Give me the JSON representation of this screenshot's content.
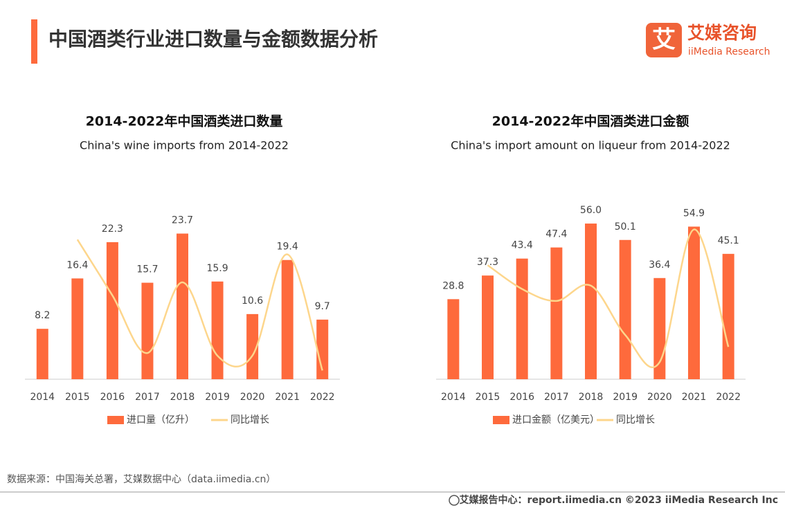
{
  "header": {
    "title": "中国酒类行业进口数量与金额数据分析",
    "logo_mark": "艾",
    "logo_cn": "艾媒咨询",
    "logo_en": "iiMedia Research"
  },
  "source": "数据来源：中国海关总署，艾媒数据中心（data.iimedia.cn）",
  "footer": "艾媒报告中心：report.iimedia.cn  ©2023  iiMedia Research  Inc",
  "chart_data": [
    {
      "type": "bar",
      "title": "2014-2022年中国酒类进口数量",
      "subtitle": "China's wine imports from 2014-2022",
      "categories": [
        "2014",
        "2015",
        "2016",
        "2017",
        "2018",
        "2019",
        "2020",
        "2021",
        "2022"
      ],
      "ylim": [
        0,
        25
      ],
      "y2lim": [
        -60,
        116
      ],
      "series": [
        {
          "name": "进口量（亿升）",
          "type": "bar",
          "color": "#fe6a3c",
          "values": [
            8.2,
            16.4,
            22.3,
            15.7,
            23.7,
            15.9,
            10.6,
            19.4,
            9.7
          ]
        },
        {
          "name": "同比增长",
          "type": "line",
          "axis": "y2",
          "color": "#fdd68c",
          "values": [
            null,
            100,
            36,
            -30,
            51,
            -33,
            -33,
            83,
            -50
          ]
        }
      ]
    },
    {
      "type": "bar",
      "title": "2014-2022年中国酒类进口金额",
      "subtitle": "China's import amount on liqueur from 2014-2022",
      "categories": [
        "2014",
        "2015",
        "2016",
        "2017",
        "2018",
        "2019",
        "2020",
        "2021",
        "2022"
      ],
      "ylim": [
        0,
        60
      ],
      "y2lim": [
        -37,
        61
      ],
      "series": [
        {
          "name": "进口金额（亿美元）",
          "type": "bar",
          "color": "#fe6a3c",
          "values": [
            28.8,
            37.3,
            43.4,
            47.4,
            56,
            50.1,
            36.4,
            54.9,
            45.1
          ],
          "value_labels": [
            "28.8",
            "37.3",
            "43.4",
            "47.4",
            "56.0",
            "50.1",
            "36.4",
            "54.9",
            "45.1"
          ]
        },
        {
          "name": "同比增长",
          "type": "line",
          "axis": "y2",
          "color": "#fdd68c",
          "values": [
            null,
            30,
            16,
            9,
            18,
            -11,
            -27,
            51,
            -18
          ]
        }
      ]
    }
  ]
}
